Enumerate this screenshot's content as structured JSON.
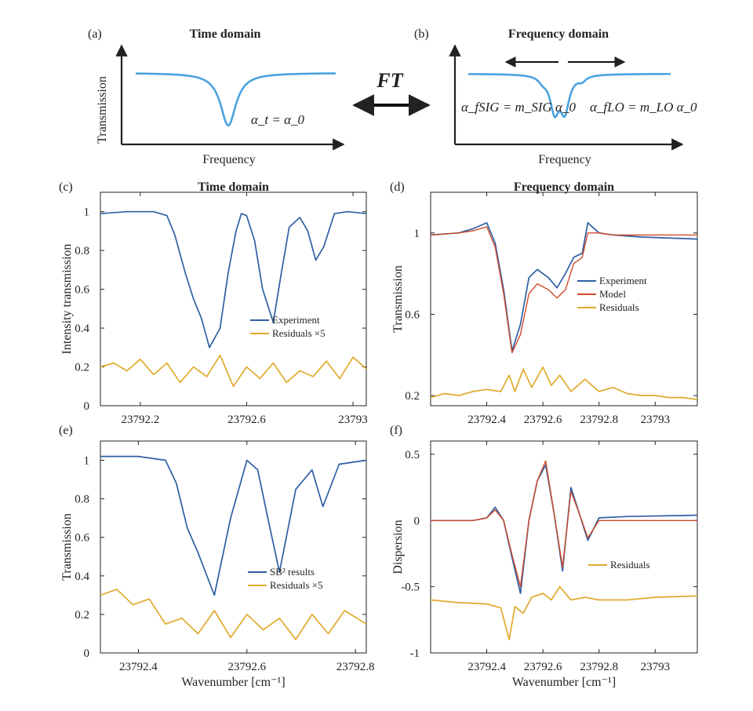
{
  "colors": {
    "experiment": "#2e5fa3",
    "model": "#d14a2b",
    "residuals": "#e0aa2c",
    "schematic": "#4aa3df",
    "axis": "#222222"
  },
  "schematic": {
    "panel_a": {
      "label": "(a)",
      "title": "Time domain",
      "xlabel": "Frequency",
      "ylabel": "Transmission",
      "equation": "α_t = α_0"
    },
    "panel_b": {
      "label": "(b)",
      "title": "Frequency domain",
      "xlabel": "Frequency",
      "eq_left": "α_fSIG = m_SIG α_0",
      "eq_right": "α_fLO = m_LO α_0"
    },
    "ft_label": "FT"
  },
  "chart_data": [
    {
      "id": "c",
      "label": "(c)",
      "title": "Time domain",
      "type": "line",
      "xlabel": "",
      "ylabel": "Intensity transmission",
      "xlim": [
        23792.05,
        23793.05
      ],
      "ylim": [
        0,
        1.1
      ],
      "xticks": [
        23792.2,
        23792.6,
        23793
      ],
      "xtick_labels": [
        "23792.2",
        "23792.6",
        "23793"
      ],
      "yticks": [
        0,
        0.2,
        0.4,
        0.6,
        0.8,
        1
      ],
      "ytick_labels": [
        "0",
        "0.2",
        "0.4",
        "0.6",
        "0.8",
        "1"
      ],
      "legend": [
        "Experiment",
        "Residuals ×5"
      ],
      "legend_position": "lower-right",
      "series": [
        {
          "name": "Experiment",
          "color": "experiment",
          "x": [
            23792.05,
            23792.15,
            23792.25,
            23792.3,
            23792.33,
            23792.37,
            23792.4,
            23792.43,
            23792.46,
            23792.5,
            23792.53,
            23792.56,
            23792.58,
            23792.6,
            23792.63,
            23792.66,
            23792.7,
            23792.73,
            23792.76,
            23792.8,
            23792.83,
            23792.86,
            23792.89,
            23792.93,
            23792.98,
            23793.05
          ],
          "y": [
            0.99,
            1.0,
            1.0,
            0.98,
            0.88,
            0.68,
            0.55,
            0.45,
            0.3,
            0.4,
            0.68,
            0.9,
            0.99,
            0.98,
            0.85,
            0.6,
            0.43,
            0.68,
            0.92,
            0.97,
            0.9,
            0.75,
            0.82,
            0.99,
            1.0,
            0.99
          ]
        },
        {
          "name": "Residuals ×5",
          "color": "residuals",
          "x": [
            23792.05,
            23792.1,
            23792.15,
            23792.2,
            23792.25,
            23792.3,
            23792.35,
            23792.4,
            23792.45,
            23792.5,
            23792.55,
            23792.6,
            23792.65,
            23792.7,
            23792.75,
            23792.8,
            23792.85,
            23792.9,
            23792.95,
            23793.0,
            23793.05
          ],
          "y": [
            0.2,
            0.22,
            0.18,
            0.24,
            0.16,
            0.22,
            0.12,
            0.2,
            0.15,
            0.26,
            0.1,
            0.2,
            0.14,
            0.22,
            0.12,
            0.18,
            0.15,
            0.23,
            0.14,
            0.25,
            0.19
          ]
        }
      ]
    },
    {
      "id": "d",
      "label": "(d)",
      "title": "Frequency domain",
      "type": "line",
      "xlabel": "",
      "ylabel": "Transmission",
      "xlim": [
        23792.2,
        23793.15
      ],
      "ylim": [
        0.15,
        1.2
      ],
      "xticks": [
        23792.4,
        23792.6,
        23792.8,
        23793
      ],
      "xtick_labels": [
        "23792.4",
        "23792.6",
        "23792.8",
        "23793"
      ],
      "yticks": [
        0.2,
        0.6,
        1
      ],
      "ytick_labels": [
        "0.2",
        "0.6",
        "1"
      ],
      "legend": [
        "Experiment",
        "Model",
        "Residuals"
      ],
      "legend_position": "middle-right",
      "series": [
        {
          "name": "Experiment",
          "color": "experiment",
          "x": [
            23792.2,
            23792.3,
            23792.35,
            23792.4,
            23792.43,
            23792.46,
            23792.49,
            23792.52,
            23792.55,
            23792.58,
            23792.62,
            23792.65,
            23792.68,
            23792.71,
            23792.74,
            23792.76,
            23792.8,
            23792.85,
            23792.95,
            23793.15
          ],
          "y": [
            0.99,
            1.0,
            1.02,
            1.05,
            0.95,
            0.72,
            0.42,
            0.55,
            0.78,
            0.82,
            0.78,
            0.73,
            0.8,
            0.88,
            0.9,
            1.05,
            1.0,
            0.99,
            0.98,
            0.97
          ]
        },
        {
          "name": "Model",
          "color": "model",
          "x": [
            23792.2,
            23792.3,
            23792.35,
            23792.4,
            23792.43,
            23792.46,
            23792.49,
            23792.52,
            23792.55,
            23792.58,
            23792.62,
            23792.65,
            23792.68,
            23792.71,
            23792.74,
            23792.76,
            23792.8,
            23792.85,
            23792.95,
            23793.15
          ],
          "y": [
            0.99,
            1.0,
            1.01,
            1.03,
            0.93,
            0.7,
            0.41,
            0.5,
            0.7,
            0.75,
            0.72,
            0.68,
            0.72,
            0.85,
            0.88,
            1.0,
            1.0,
            0.99,
            0.99,
            0.99
          ]
        },
        {
          "name": "Residuals",
          "color": "residuals",
          "x": [
            23792.2,
            23792.25,
            23792.3,
            23792.35,
            23792.4,
            23792.45,
            23792.48,
            23792.5,
            23792.53,
            23792.56,
            23792.6,
            23792.63,
            23792.66,
            23792.7,
            23792.75,
            23792.8,
            23792.85,
            23792.9,
            23792.95,
            23793.0,
            23793.05,
            23793.1,
            23793.15
          ],
          "y": [
            0.19,
            0.21,
            0.2,
            0.22,
            0.23,
            0.22,
            0.3,
            0.22,
            0.33,
            0.24,
            0.34,
            0.25,
            0.3,
            0.22,
            0.28,
            0.22,
            0.24,
            0.21,
            0.2,
            0.2,
            0.19,
            0.19,
            0.18
          ]
        }
      ]
    },
    {
      "id": "e",
      "label": "(e)",
      "title": "",
      "type": "line",
      "xlabel": "Wavenumber [cm⁻¹]",
      "ylabel": "Transmission",
      "xlim": [
        23792.33,
        23792.82
      ],
      "ylim": [
        0,
        1.1
      ],
      "xticks": [
        23792.4,
        23792.6,
        23792.8
      ],
      "xtick_labels": [
        "23792.4",
        "23792.6",
        "23792.8"
      ],
      "yticks": [
        0,
        0.2,
        0.4,
        0.6,
        0.8,
        1
      ],
      "ytick_labels": [
        "0",
        "0.2",
        "0.4",
        "0.6",
        "0.8",
        "1"
      ],
      "legend": [
        "SB² results",
        "Residuals ×5"
      ],
      "legend_position": "lower-right",
      "series": [
        {
          "name": "SB² results",
          "color": "experiment",
          "x": [
            23792.33,
            23792.4,
            23792.45,
            23792.47,
            23792.49,
            23792.51,
            23792.54,
            23792.57,
            23792.6,
            23792.62,
            23792.64,
            23792.66,
            23792.69,
            23792.72,
            23792.74,
            23792.77,
            23792.82
          ],
          "y": [
            1.02,
            1.02,
            1.0,
            0.88,
            0.65,
            0.52,
            0.3,
            0.7,
            1.0,
            0.95,
            0.68,
            0.42,
            0.85,
            0.95,
            0.76,
            0.98,
            1.0
          ]
        },
        {
          "name": "Residuals ×5",
          "color": "residuals",
          "x": [
            23792.33,
            23792.36,
            23792.39,
            23792.42,
            23792.45,
            23792.48,
            23792.51,
            23792.54,
            23792.57,
            23792.6,
            23792.63,
            23792.66,
            23792.69,
            23792.72,
            23792.75,
            23792.78,
            23792.82
          ],
          "y": [
            0.3,
            0.33,
            0.25,
            0.28,
            0.15,
            0.18,
            0.1,
            0.22,
            0.08,
            0.2,
            0.12,
            0.18,
            0.07,
            0.2,
            0.1,
            0.22,
            0.15
          ]
        }
      ]
    },
    {
      "id": "f",
      "label": "(f)",
      "title": "",
      "type": "line",
      "xlabel": "Wavenumber [cm⁻¹]",
      "ylabel": "Dispersion",
      "xlim": [
        23792.2,
        23793.15
      ],
      "ylim": [
        -1,
        0.6
      ],
      "xticks": [
        23792.4,
        23792.6,
        23792.8,
        23793
      ],
      "xtick_labels": [
        "23792.4",
        "23792.6",
        "23792.8",
        "23793"
      ],
      "yticks": [
        -1,
        -0.5,
        0,
        0.5
      ],
      "ytick_labels": [
        "-1",
        "-0.5",
        "0",
        "0.5"
      ],
      "legend": [
        "Residuals"
      ],
      "legend_position": "lower-right",
      "series": [
        {
          "name": "Experiment",
          "color": "experiment",
          "x": [
            23792.2,
            23792.35,
            23792.4,
            23792.43,
            23792.46,
            23792.49,
            23792.52,
            23792.55,
            23792.58,
            23792.61,
            23792.64,
            23792.67,
            23792.7,
            23792.73,
            23792.76,
            23792.8,
            23792.9,
            23793.15
          ],
          "y": [
            0.0,
            0.0,
            0.02,
            0.1,
            0.0,
            -0.28,
            -0.55,
            0.0,
            0.3,
            0.42,
            0.05,
            -0.38,
            0.25,
            0.05,
            -0.15,
            0.02,
            0.03,
            0.04
          ]
        },
        {
          "name": "Model",
          "color": "model",
          "x": [
            23792.2,
            23792.35,
            23792.4,
            23792.43,
            23792.46,
            23792.49,
            23792.52,
            23792.55,
            23792.58,
            23792.61,
            23792.64,
            23792.67,
            23792.7,
            23792.73,
            23792.76,
            23792.8,
            23792.9,
            23793.15
          ],
          "y": [
            0.0,
            0.0,
            0.02,
            0.08,
            0.0,
            -0.26,
            -0.5,
            0.0,
            0.3,
            0.45,
            0.05,
            -0.35,
            0.22,
            0.05,
            -0.13,
            0.0,
            0.0,
            0.0
          ]
        },
        {
          "name": "Residuals",
          "color": "residuals",
          "x": [
            23792.2,
            23792.3,
            23792.4,
            23792.45,
            23792.48,
            23792.5,
            23792.53,
            23792.56,
            23792.6,
            23792.63,
            23792.66,
            23792.7,
            23792.75,
            23792.8,
            23792.9,
            23793.0,
            23793.15
          ],
          "y": [
            -0.6,
            -0.62,
            -0.63,
            -0.66,
            -0.9,
            -0.65,
            -0.7,
            -0.58,
            -0.55,
            -0.6,
            -0.5,
            -0.6,
            -0.58,
            -0.6,
            -0.6,
            -0.58,
            -0.57
          ]
        }
      ]
    }
  ]
}
